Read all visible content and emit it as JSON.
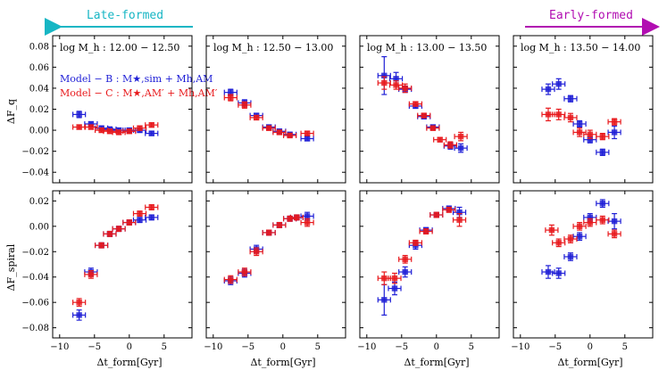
{
  "colors": {
    "model_b": "#1f1fd6",
    "model_c": "#e8191c",
    "late": "#17b6c4",
    "early": "#b10db1"
  },
  "arrows": {
    "late_label": "Late-formed",
    "early_label": "Early-formed"
  },
  "legend": {
    "model_b": "Model − B : M★,sim + Mh,AM",
    "model_c": "Model − C : M★,AM′ + Mh,AM′"
  },
  "axes": {
    "xlabel": "Δt_form[Gyr]",
    "ylabel_top": "ΔF_q",
    "ylabel_bottom": "ΔF_spiral"
  },
  "chart_data": {
    "type": "scatter",
    "x_ticks": [
      -10,
      -5,
      0,
      5
    ],
    "xlim": [
      -11,
      9
    ],
    "rows": [
      {
        "name": "Fq",
        "ylim": [
          -0.05,
          0.09
        ],
        "yticks": [
          -0.04,
          -0.02,
          0.0,
          0.02,
          0.04,
          0.06,
          0.08
        ],
        "ytick_labels": [
          "−0.04",
          "−0.02",
          "0.00",
          "0.02",
          "0.04",
          "0.06",
          "0.08"
        ]
      },
      {
        "name": "Fspiral",
        "ylim": [
          -0.088,
          0.028
        ],
        "yticks": [
          -0.08,
          -0.06,
          -0.04,
          -0.02,
          0.0,
          0.02
        ],
        "ytick_labels": [
          "−0.08",
          "−0.06",
          "−0.04",
          "−0.02",
          "0.00",
          "0.02"
        ]
      }
    ],
    "x_tick_labels": [
      "−10",
      "−5",
      "0",
      "5"
    ],
    "panels": [
      {
        "title": "log M_h : 12.00 − 12.50",
        "row": 0,
        "col": 0,
        "model_b": [
          [
            -7.2,
            0.015,
            0.003
          ],
          [
            -5.5,
            0.006,
            0.002
          ],
          [
            -4,
            0.002,
            0.002
          ],
          [
            -2.8,
            0.001,
            0.002
          ],
          [
            -1.5,
            0.0,
            0.002
          ],
          [
            0,
            0.0,
            0.002
          ],
          [
            1.5,
            0.0,
            0.002
          ],
          [
            3.2,
            -0.003,
            0.002
          ]
        ],
        "model_c": [
          [
            -7.2,
            0.003,
            0.002
          ],
          [
            -5.5,
            0.003,
            0.002
          ],
          [
            -4,
            0.0,
            0.002
          ],
          [
            -2.8,
            -0.001,
            0.002
          ],
          [
            -1.5,
            -0.002,
            0.002
          ],
          [
            0,
            -0.001,
            0.002
          ],
          [
            1.5,
            0.002,
            0.002
          ],
          [
            3.2,
            0.005,
            0.002
          ]
        ]
      },
      {
        "title": "log M_h : 12.50 − 13.00",
        "row": 0,
        "col": 1,
        "model_b": [
          [
            -7.5,
            0.036,
            0.003
          ],
          [
            -5.5,
            0.026,
            0.003
          ],
          [
            -3.8,
            0.014,
            0.002
          ],
          [
            -2,
            0.003,
            0.002
          ],
          [
            -0.5,
            -0.001,
            0.002
          ],
          [
            1,
            -0.004,
            0.002
          ],
          [
            3.5,
            -0.008,
            0.002
          ]
        ],
        "model_c": [
          [
            -7.5,
            0.031,
            0.003
          ],
          [
            -5.5,
            0.024,
            0.003
          ],
          [
            -3.8,
            0.012,
            0.002
          ],
          [
            -2,
            0.002,
            0.002
          ],
          [
            -0.5,
            -0.002,
            0.002
          ],
          [
            1,
            -0.005,
            0.002
          ],
          [
            3.5,
            -0.003,
            0.002
          ]
        ]
      },
      {
        "title": "log M_h : 13.00 − 13.50",
        "row": 0,
        "col": 2,
        "model_b": [
          [
            -7.5,
            0.052,
            0.018
          ],
          [
            -5.8,
            0.049,
            0.006
          ],
          [
            -4.5,
            0.039,
            0.003
          ],
          [
            -3,
            0.023,
            0.002
          ],
          [
            -1.8,
            0.013,
            0.002
          ],
          [
            -0.5,
            0.003,
            0.002
          ],
          [
            2,
            -0.015,
            0.003
          ],
          [
            3.5,
            -0.017,
            0.004
          ]
        ],
        "model_c": [
          [
            -7.5,
            0.045,
            0.006
          ],
          [
            -5.8,
            0.043,
            0.004
          ],
          [
            -4.5,
            0.04,
            0.004
          ],
          [
            -3,
            0.025,
            0.002
          ],
          [
            -1.8,
            0.014,
            0.002
          ],
          [
            -0.5,
            0.002,
            0.002
          ],
          [
            0.5,
            -0.009,
            0.002
          ],
          [
            2,
            -0.014,
            0.003
          ],
          [
            3.5,
            -0.006,
            0.004
          ]
        ]
      },
      {
        "title": "log M_h : 13.50 − 14.00",
        "row": 0,
        "col": 3,
        "model_b": [
          [
            -6,
            0.039,
            0.005
          ],
          [
            -4.5,
            0.044,
            0.005
          ],
          [
            -2.8,
            0.03,
            0.003
          ],
          [
            -1.5,
            0.006,
            0.003
          ],
          [
            0,
            -0.009,
            0.003
          ],
          [
            1.8,
            -0.021,
            0.003
          ],
          [
            3.5,
            -0.002,
            0.006
          ]
        ],
        "model_c": [
          [
            -6,
            0.015,
            0.006
          ],
          [
            -4.5,
            0.015,
            0.005
          ],
          [
            -2.8,
            0.012,
            0.004
          ],
          [
            -1.5,
            -0.002,
            0.004
          ],
          [
            0,
            -0.004,
            0.004
          ],
          [
            1.8,
            -0.006,
            0.003
          ],
          [
            3.5,
            0.008,
            0.003
          ]
        ]
      },
      {
        "title": "",
        "row": 1,
        "col": 0,
        "model_b": [
          [
            -7.2,
            -0.07,
            0.004
          ],
          [
            -5.5,
            -0.036,
            0.003
          ],
          [
            -4,
            -0.015,
            0.002
          ],
          [
            -2.8,
            -0.006,
            0.002
          ],
          [
            -1.5,
            -0.002,
            0.002
          ],
          [
            0,
            0.003,
            0.002
          ],
          [
            1.5,
            0.005,
            0.002
          ],
          [
            3.2,
            0.007,
            0.002
          ]
        ],
        "model_c": [
          [
            -7.2,
            -0.06,
            0.003
          ],
          [
            -5.5,
            -0.038,
            0.003
          ],
          [
            -4,
            -0.015,
            0.002
          ],
          [
            -2.8,
            -0.006,
            0.002
          ],
          [
            -1.5,
            -0.002,
            0.002
          ],
          [
            0,
            0.003,
            0.002
          ],
          [
            1.5,
            0.01,
            0.002
          ],
          [
            3.2,
            0.015,
            0.002
          ]
        ]
      },
      {
        "title": "",
        "row": 1,
        "col": 1,
        "model_b": [
          [
            -7.5,
            -0.043,
            0.003
          ],
          [
            -5.5,
            -0.037,
            0.003
          ],
          [
            -3.8,
            -0.018,
            0.003
          ],
          [
            -2,
            -0.005,
            0.002
          ],
          [
            -0.5,
            0.001,
            0.002
          ],
          [
            1,
            0.006,
            0.002
          ],
          [
            2,
            0.007,
            0.002
          ],
          [
            3.5,
            0.008,
            0.003
          ]
        ],
        "model_c": [
          [
            -7.5,
            -0.042,
            0.003
          ],
          [
            -5.5,
            -0.036,
            0.003
          ],
          [
            -3.8,
            -0.02,
            0.003
          ],
          [
            -2,
            -0.005,
            0.002
          ],
          [
            -0.5,
            0.001,
            0.002
          ],
          [
            1,
            0.006,
            0.002
          ],
          [
            2,
            0.007,
            0.002
          ],
          [
            3.5,
            0.003,
            0.003
          ]
        ]
      },
      {
        "title": "",
        "row": 1,
        "col": 2,
        "model_b": [
          [
            -7.5,
            -0.058,
            0.012
          ],
          [
            -6,
            -0.049,
            0.005
          ],
          [
            -4.5,
            -0.036,
            0.004
          ],
          [
            -3,
            -0.015,
            0.003
          ],
          [
            -1.5,
            -0.003,
            0.002
          ],
          [
            0,
            0.009,
            0.002
          ],
          [
            1.8,
            0.014,
            0.002
          ],
          [
            3.3,
            0.011,
            0.004
          ]
        ],
        "model_c": [
          [
            -7.5,
            -0.041,
            0.005
          ],
          [
            -6,
            -0.041,
            0.004
          ],
          [
            -4.5,
            -0.026,
            0.003
          ],
          [
            -3,
            -0.013,
            0.002
          ],
          [
            -1.5,
            -0.004,
            0.002
          ],
          [
            0,
            0.009,
            0.002
          ],
          [
            1.8,
            0.013,
            0.002
          ],
          [
            3.3,
            0.005,
            0.005
          ]
        ]
      },
      {
        "title": "",
        "row": 1,
        "col": 3,
        "model_b": [
          [
            -6,
            -0.036,
            0.005
          ],
          [
            -4.5,
            -0.037,
            0.004
          ],
          [
            -2.8,
            -0.024,
            0.003
          ],
          [
            -1.5,
            -0.008,
            0.003
          ],
          [
            0,
            0.007,
            0.003
          ],
          [
            1.8,
            0.018,
            0.003
          ],
          [
            3.5,
            0.004,
            0.006
          ]
        ],
        "model_c": [
          [
            -5.5,
            -0.003,
            0.004
          ],
          [
            -4.5,
            -0.013,
            0.003
          ],
          [
            -2.8,
            -0.01,
            0.003
          ],
          [
            -1.5,
            0.0,
            0.003
          ],
          [
            0,
            0.003,
            0.003
          ],
          [
            1.8,
            0.005,
            0.003
          ],
          [
            3.5,
            -0.006,
            0.003
          ]
        ]
      }
    ]
  }
}
